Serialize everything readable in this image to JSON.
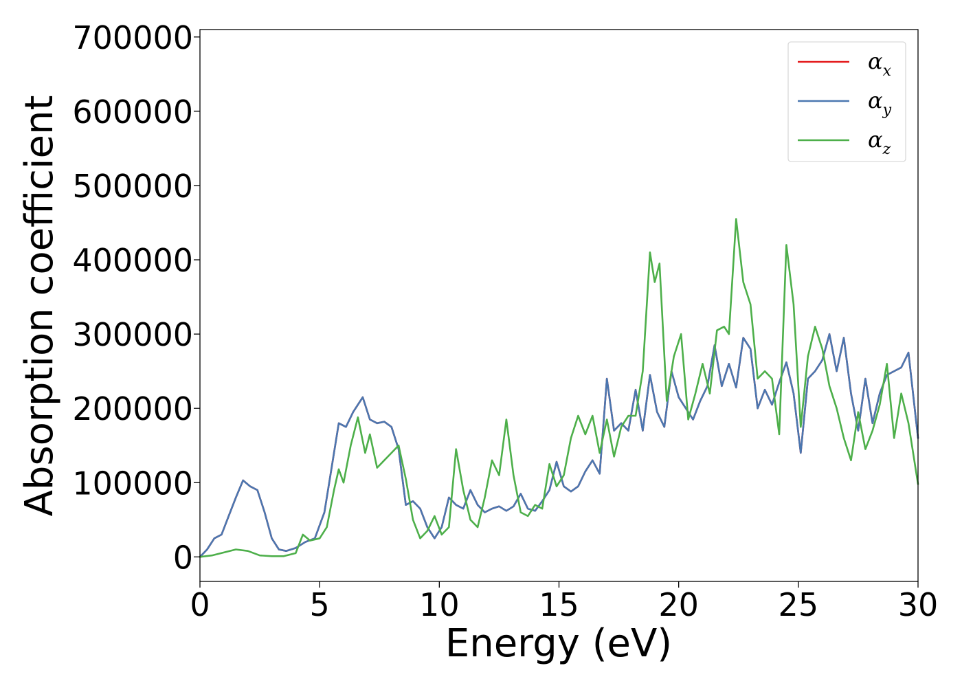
{
  "chart_data": {
    "type": "line",
    "title": "",
    "xlabel": "Energy (eV)",
    "ylabel": "Absorption coefficient",
    "xlim": [
      0,
      30
    ],
    "ylim": [
      -33000,
      710000
    ],
    "grid": false,
    "legend_position": "top-right",
    "xticks": [
      0,
      5,
      10,
      15,
      20,
      25,
      30
    ],
    "xtick_labels": [
      "0",
      "5",
      "10",
      "15",
      "20",
      "25",
      "30"
    ],
    "yticks": [
      0,
      100000,
      200000,
      300000,
      400000,
      500000,
      600000,
      700000
    ],
    "ytick_labels": [
      "0",
      "100000",
      "200000",
      "300000",
      "400000",
      "500000",
      "600000",
      "700000"
    ],
    "series": [
      {
        "name": "αx",
        "base": "α",
        "sub": "x",
        "color": "#e41a1c",
        "x": [
          0,
          0.3,
          0.6,
          0.9,
          1.2,
          1.5,
          1.8,
          2.1,
          2.4,
          2.7,
          3.0,
          3.3,
          3.6,
          4.0,
          4.4,
          4.8,
          5.2,
          5.5,
          5.8,
          6.1,
          6.4,
          6.8,
          7.1,
          7.4,
          7.7,
          8.0,
          8.3,
          8.6,
          8.9,
          9.2,
          9.5,
          9.8,
          10.1,
          10.4,
          10.7,
          11.0,
          11.3,
          11.6,
          11.9,
          12.2,
          12.5,
          12.8,
          13.1,
          13.4,
          13.7,
          14.0,
          14.3,
          14.6,
          14.9,
          15.2,
          15.5,
          15.8,
          16.1,
          16.4,
          16.7,
          17.0,
          17.3,
          17.6,
          17.9,
          18.2,
          18.5,
          18.8,
          19.1,
          19.4,
          19.7,
          20.0,
          20.3,
          20.6,
          20.9,
          21.2,
          21.5,
          21.8,
          22.1,
          22.4,
          22.7,
          23.0,
          23.3,
          23.6,
          23.9,
          24.2,
          24.5,
          24.8,
          25.1,
          25.4,
          25.7,
          26.0,
          26.3,
          26.6,
          26.9,
          27.2,
          27.5,
          27.8,
          28.1,
          28.4,
          28.7,
          29.0,
          29.3,
          29.6,
          30.0
        ],
        "y": [
          0,
          10000,
          25000,
          30000,
          55000,
          80000,
          103000,
          95000,
          90000,
          60000,
          25000,
          10000,
          8000,
          12000,
          20000,
          25000,
          60000,
          120000,
          180000,
          175000,
          195000,
          215000,
          185000,
          180000,
          182000,
          175000,
          145000,
          70000,
          75000,
          65000,
          40000,
          25000,
          40000,
          80000,
          70000,
          65000,
          90000,
          70000,
          60000,
          65000,
          68000,
          62000,
          68000,
          85000,
          65000,
          62000,
          75000,
          90000,
          128000,
          95000,
          88000,
          95000,
          115000,
          130000,
          112000,
          240000,
          170000,
          180000,
          170000,
          225000,
          170000,
          245000,
          195000,
          175000,
          250000,
          215000,
          200000,
          185000,
          210000,
          230000,
          285000,
          230000,
          260000,
          228000,
          295000,
          280000,
          200000,
          225000,
          205000,
          235000,
          262000,
          220000,
          140000,
          240000,
          250000,
          265000,
          300000,
          250000,
          295000,
          220000,
          170000,
          240000,
          180000,
          220000,
          245000,
          250000,
          255000,
          275000,
          160000
        ]
      },
      {
        "name": "αy",
        "base": "α",
        "sub": "y",
        "color": "#4a77b0",
        "x": [
          0,
          0.3,
          0.6,
          0.9,
          1.2,
          1.5,
          1.8,
          2.1,
          2.4,
          2.7,
          3.0,
          3.3,
          3.6,
          4.0,
          4.4,
          4.8,
          5.2,
          5.5,
          5.8,
          6.1,
          6.4,
          6.8,
          7.1,
          7.4,
          7.7,
          8.0,
          8.3,
          8.6,
          8.9,
          9.2,
          9.5,
          9.8,
          10.1,
          10.4,
          10.7,
          11.0,
          11.3,
          11.6,
          11.9,
          12.2,
          12.5,
          12.8,
          13.1,
          13.4,
          13.7,
          14.0,
          14.3,
          14.6,
          14.9,
          15.2,
          15.5,
          15.8,
          16.1,
          16.4,
          16.7,
          17.0,
          17.3,
          17.6,
          17.9,
          18.2,
          18.5,
          18.8,
          19.1,
          19.4,
          19.7,
          20.0,
          20.3,
          20.6,
          20.9,
          21.2,
          21.5,
          21.8,
          22.1,
          22.4,
          22.7,
          23.0,
          23.3,
          23.6,
          23.9,
          24.2,
          24.5,
          24.8,
          25.1,
          25.4,
          25.7,
          26.0,
          26.3,
          26.6,
          26.9,
          27.2,
          27.5,
          27.8,
          28.1,
          28.4,
          28.7,
          29.0,
          29.3,
          29.6,
          30.0
        ],
        "y": [
          0,
          10000,
          25000,
          30000,
          55000,
          80000,
          103000,
          95000,
          90000,
          60000,
          25000,
          10000,
          8000,
          12000,
          20000,
          25000,
          60000,
          120000,
          180000,
          175000,
          195000,
          215000,
          185000,
          180000,
          182000,
          175000,
          145000,
          70000,
          75000,
          65000,
          40000,
          25000,
          40000,
          80000,
          70000,
          65000,
          90000,
          70000,
          60000,
          65000,
          68000,
          62000,
          68000,
          85000,
          65000,
          62000,
          75000,
          90000,
          128000,
          95000,
          88000,
          95000,
          115000,
          130000,
          112000,
          240000,
          170000,
          180000,
          170000,
          225000,
          170000,
          245000,
          195000,
          175000,
          250000,
          215000,
          200000,
          185000,
          210000,
          230000,
          285000,
          230000,
          260000,
          228000,
          295000,
          280000,
          200000,
          225000,
          205000,
          235000,
          262000,
          220000,
          140000,
          240000,
          250000,
          265000,
          300000,
          250000,
          295000,
          220000,
          170000,
          240000,
          180000,
          220000,
          245000,
          250000,
          255000,
          275000,
          160000
        ]
      },
      {
        "name": "αz",
        "base": "α",
        "sub": "z",
        "color": "#4daf4a",
        "x": [
          0,
          0.5,
          1.0,
          1.5,
          2.0,
          2.5,
          3.0,
          3.5,
          4.0,
          4.3,
          4.6,
          5.0,
          5.3,
          5.6,
          5.8,
          6.0,
          6.3,
          6.6,
          6.9,
          7.1,
          7.4,
          7.7,
          8.0,
          8.3,
          8.6,
          8.9,
          9.2,
          9.5,
          9.8,
          10.1,
          10.4,
          10.7,
          11.0,
          11.3,
          11.6,
          11.9,
          12.2,
          12.5,
          12.8,
          13.1,
          13.4,
          13.7,
          14.0,
          14.3,
          14.6,
          14.9,
          15.2,
          15.5,
          15.8,
          16.1,
          16.4,
          16.7,
          17.0,
          17.3,
          17.6,
          17.9,
          18.2,
          18.5,
          18.8,
          19.0,
          19.2,
          19.5,
          19.8,
          20.1,
          20.4,
          20.7,
          21.0,
          21.3,
          21.6,
          21.9,
          22.1,
          22.4,
          22.7,
          23.0,
          23.3,
          23.6,
          23.9,
          24.2,
          24.5,
          24.8,
          25.1,
          25.4,
          25.7,
          26.0,
          26.3,
          26.6,
          26.9,
          27.2,
          27.5,
          27.8,
          28.1,
          28.4,
          28.7,
          29.0,
          29.3,
          29.6,
          30.0
        ],
        "y": [
          0,
          2000,
          6000,
          10000,
          8000,
          2000,
          1000,
          1000,
          5000,
          30000,
          22000,
          25000,
          40000,
          90000,
          118000,
          100000,
          150000,
          188000,
          140000,
          165000,
          120000,
          130000,
          140000,
          150000,
          105000,
          50000,
          25000,
          35000,
          55000,
          30000,
          40000,
          145000,
          90000,
          50000,
          40000,
          80000,
          130000,
          110000,
          185000,
          110000,
          60000,
          55000,
          70000,
          65000,
          125000,
          95000,
          110000,
          160000,
          190000,
          165000,
          190000,
          140000,
          185000,
          135000,
          175000,
          190000,
          190000,
          250000,
          410000,
          370000,
          395000,
          210000,
          270000,
          300000,
          185000,
          220000,
          260000,
          220000,
          305000,
          310000,
          300000,
          455000,
          370000,
          340000,
          240000,
          250000,
          240000,
          165000,
          420000,
          340000,
          175000,
          270000,
          310000,
          280000,
          230000,
          200000,
          160000,
          130000,
          195000,
          145000,
          170000,
          205000,
          260000,
          160000,
          220000,
          180000,
          98000
        ]
      }
    ]
  }
}
